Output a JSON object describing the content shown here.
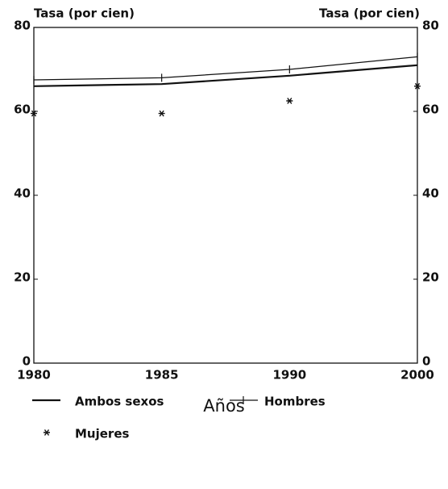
{
  "chart_data": {
    "type": "line",
    "y_label": "Tasa (por cien)",
    "y2_label": "Tasa (por cien)",
    "x_label": "Años",
    "categories": [
      "1980",
      "1985",
      "1990",
      "2000"
    ],
    "series": [
      {
        "name": "Ambos sexos",
        "color": "#111111",
        "style": "thick",
        "values": [
          66,
          66.5,
          68.5,
          71
        ]
      },
      {
        "name": "Hombres",
        "color": "#111111",
        "style": "tick",
        "values": [
          67.5,
          68,
          70,
          73
        ]
      },
      {
        "name": "Mujeres",
        "color": "#111111",
        "style": "star",
        "values": [
          59.5,
          59.5,
          62.5,
          66
        ]
      }
    ],
    "ylim": [
      0,
      80
    ],
    "yticks": [
      0,
      20,
      40,
      60,
      80
    ],
    "y2lim": [
      0,
      80
    ],
    "y2ticks": [
      0,
      20,
      40,
      60,
      80
    ],
    "grid": false
  }
}
